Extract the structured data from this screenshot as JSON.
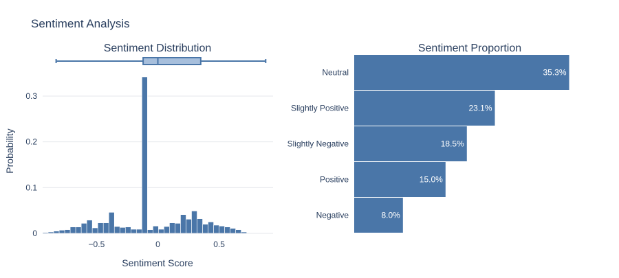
{
  "title": "Sentiment Analysis",
  "chart_data": [
    {
      "type": "histogram",
      "title": "Sentiment Distribution",
      "xlabel": "Sentiment Score",
      "ylabel": "Probability",
      "xlim": [
        -0.94,
        0.94
      ],
      "ylim": [
        0,
        0.36
      ],
      "x_ticks": [
        -0.5,
        0,
        0.5
      ],
      "x_tick_labels": [
        "−0.5",
        "0",
        "0.5"
      ],
      "y_ticks": [
        0,
        0.1,
        0.2,
        0.3
      ],
      "y_tick_labels": [
        "0",
        "0.1",
        "0.2",
        "0.3"
      ],
      "grid": true,
      "bin_width": 0.045,
      "bins": [
        {
          "x0": -0.94,
          "value": 0.002
        },
        {
          "x0": -0.895,
          "value": 0.003
        },
        {
          "x0": -0.85,
          "value": 0.005
        },
        {
          "x0": -0.805,
          "value": 0.007
        },
        {
          "x0": -0.76,
          "value": 0.008
        },
        {
          "x0": -0.715,
          "value": 0.014
        },
        {
          "x0": -0.67,
          "value": 0.014
        },
        {
          "x0": -0.625,
          "value": 0.022
        },
        {
          "x0": -0.58,
          "value": 0.029
        },
        {
          "x0": -0.535,
          "value": 0.012
        },
        {
          "x0": -0.49,
          "value": 0.023
        },
        {
          "x0": -0.445,
          "value": 0.023
        },
        {
          "x0": -0.4,
          "value": 0.046
        },
        {
          "x0": -0.355,
          "value": 0.015
        },
        {
          "x0": -0.31,
          "value": 0.013
        },
        {
          "x0": -0.265,
          "value": 0.014
        },
        {
          "x0": -0.22,
          "value": 0.009
        },
        {
          "x0": -0.175,
          "value": 0.009
        },
        {
          "x0": -0.13,
          "value": 0.342
        },
        {
          "x0": -0.085,
          "value": 0.008
        },
        {
          "x0": -0.04,
          "value": 0.016
        },
        {
          "x0": 0.005,
          "value": 0.009
        },
        {
          "x0": 0.05,
          "value": 0.015
        },
        {
          "x0": 0.095,
          "value": 0.023
        },
        {
          "x0": 0.14,
          "value": 0.022
        },
        {
          "x0": 0.185,
          "value": 0.041
        },
        {
          "x0": 0.23,
          "value": 0.031
        },
        {
          "x0": 0.275,
          "value": 0.049
        },
        {
          "x0": 0.32,
          "value": 0.032
        },
        {
          "x0": 0.365,
          "value": 0.02
        },
        {
          "x0": 0.41,
          "value": 0.025
        },
        {
          "x0": 0.455,
          "value": 0.018
        },
        {
          "x0": 0.5,
          "value": 0.016
        },
        {
          "x0": 0.545,
          "value": 0.014
        },
        {
          "x0": 0.59,
          "value": 0.011
        },
        {
          "x0": 0.635,
          "value": 0.008
        },
        {
          "x0": 0.68,
          "value": 0.003
        }
      ],
      "box": {
        "min": -0.83,
        "q1": -0.12,
        "median": 0.0,
        "q3": 0.35,
        "max": 0.88
      }
    },
    {
      "type": "bar",
      "orientation": "horizontal",
      "title": "Sentiment Proportion",
      "categories": [
        "Neutral",
        "Slightly Positive",
        "Slightly Negative",
        "Positive",
        "Negative"
      ],
      "values": [
        35.3,
        23.1,
        18.5,
        15.0,
        8.0
      ],
      "value_labels": [
        "35.3%",
        "23.1%",
        "18.5%",
        "15.0%",
        "8.0%"
      ],
      "xlim": [
        0,
        37.5
      ]
    }
  ],
  "colors": {
    "bar": "#4a76a8",
    "box_fill": "#a7bfdc",
    "grid": "#e5e7eb",
    "text": "#2a3f5f"
  }
}
